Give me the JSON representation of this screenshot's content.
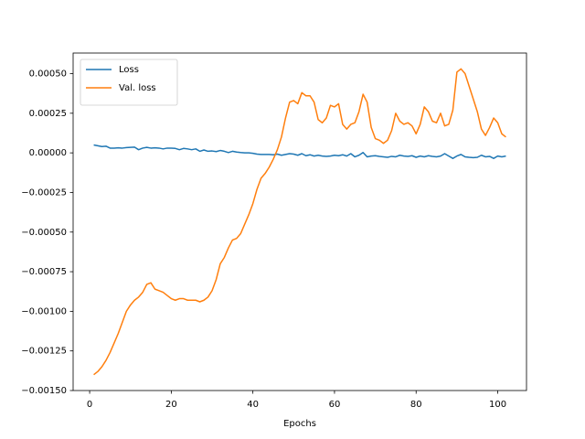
{
  "chart_data": {
    "type": "line",
    "x_label": "Epochs",
    "x": [
      1,
      2,
      3,
      4,
      5,
      6,
      7,
      8,
      9,
      10,
      11,
      12,
      13,
      14,
      15,
      16,
      17,
      18,
      19,
      20,
      21,
      22,
      23,
      24,
      25,
      26,
      27,
      28,
      29,
      30,
      31,
      32,
      33,
      34,
      35,
      36,
      37,
      38,
      39,
      40,
      41,
      42,
      43,
      44,
      45,
      46,
      47,
      48,
      49,
      50,
      51,
      52,
      53,
      54,
      55,
      56,
      57,
      58,
      59,
      60,
      61,
      62,
      63,
      64,
      65,
      66,
      67,
      68,
      69,
      70,
      71,
      72,
      73,
      74,
      75,
      76,
      77,
      78,
      79,
      80,
      81,
      82,
      83,
      84,
      85,
      86,
      87,
      88,
      89,
      90,
      91,
      92,
      93,
      94,
      95,
      96,
      97,
      98,
      99,
      100,
      101,
      102
    ],
    "series": [
      {
        "name": "Loss",
        "color": "#1f77b4",
        "values": [
          5e-05,
          4.5e-05,
          4e-05,
          4.2e-05,
          3e-05,
          3e-05,
          3.2e-05,
          3e-05,
          3.3e-05,
          3.5e-05,
          3.6e-05,
          2e-05,
          3e-05,
          3.5e-05,
          3e-05,
          3.2e-05,
          3e-05,
          2.5e-05,
          3e-05,
          3e-05,
          2.8e-05,
          2e-05,
          2.8e-05,
          2.5e-05,
          2e-05,
          2.5e-05,
          1e-05,
          1.8e-05,
          1e-05,
          1.2e-05,
          8e-06,
          1.5e-05,
          1e-05,
          2e-06,
          1e-05,
          5e-06,
          2e-06,
          0.0,
          0.0,
          -3e-06,
          -8e-06,
          -1e-05,
          -1e-05,
          -1e-05,
          -1.2e-05,
          -8e-06,
          -1.5e-05,
          -1e-05,
          -5e-06,
          -8e-06,
          -1.5e-05,
          -5e-06,
          -1.8e-05,
          -1.2e-05,
          -2e-05,
          -1.5e-05,
          -2e-05,
          -2.2e-05,
          -2e-05,
          -1.5e-05,
          -1.8e-05,
          -1.2e-05,
          -2e-05,
          -5e-06,
          -2.5e-05,
          -1.5e-05,
          2e-06,
          -2.5e-05,
          -2e-05,
          -1.8e-05,
          -2.2e-05,
          -2.5e-05,
          -2.8e-05,
          -2.2e-05,
          -2.5e-05,
          -1.5e-05,
          -2e-05,
          -2.2e-05,
          -1.8e-05,
          -2.8e-05,
          -2e-05,
          -2.5e-05,
          -1.8e-05,
          -2.2e-05,
          -2.5e-05,
          -2e-05,
          -5e-06,
          -2e-05,
          -3.5e-05,
          -2e-05,
          -1e-05,
          -2.5e-05,
          -2.8e-05,
          -3e-05,
          -2.8e-05,
          -1.5e-05,
          -2.5e-05,
          -2.2e-05,
          -3.5e-05,
          -2e-05,
          -2.5e-05,
          -2e-05
        ]
      },
      {
        "name": "Val. loss",
        "color": "#ff7f0e",
        "values": [
          -0.0014,
          -0.00138,
          -0.00135,
          -0.00131,
          -0.00126,
          -0.0012,
          -0.00114,
          -0.00107,
          -0.001,
          -0.00096,
          -0.00093,
          -0.00091,
          -0.00088,
          -0.00083,
          -0.00082,
          -0.00086,
          -0.00087,
          -0.00088,
          -0.0009,
          -0.00092,
          -0.00093,
          -0.00092,
          -0.00092,
          -0.00093,
          -0.00093,
          -0.00093,
          -0.00094,
          -0.00093,
          -0.00091,
          -0.00087,
          -0.0008,
          -0.0007,
          -0.00066,
          -0.0006,
          -0.00055,
          -0.00054,
          -0.00051,
          -0.00045,
          -0.00039,
          -0.00032,
          -0.00023,
          -0.00016,
          -0.00013,
          -9e-05,
          -4e-05,
          2e-05,
          0.0001,
          0.00022,
          0.00032,
          0.00033,
          0.00031,
          0.00038,
          0.00036,
          0.00036,
          0.00032,
          0.00021,
          0.00019,
          0.00022,
          0.0003,
          0.00029,
          0.00031,
          0.00018,
          0.00015,
          0.00018,
          0.00019,
          0.00026,
          0.00037,
          0.00032,
          0.00016,
          9e-05,
          8e-05,
          6e-05,
          8e-05,
          0.00014,
          0.00025,
          0.0002,
          0.00018,
          0.00019,
          0.00017,
          0.00012,
          0.00018,
          0.00029,
          0.00026,
          0.0002,
          0.00019,
          0.00025,
          0.00017,
          0.00018,
          0.00027,
          0.00051,
          0.00053,
          0.0005,
          0.00042,
          0.00034,
          0.00026,
          0.00015,
          0.00011,
          0.00016,
          0.00022,
          0.00019,
          0.00012,
          0.0001
        ]
      }
    ],
    "xlim": [
      -4.05,
      107.05
    ],
    "ylim": [
      -0.0015,
      0.00063
    ],
    "xticks": [
      0,
      20,
      40,
      60,
      80,
      100
    ],
    "yticks": [
      {
        "value": -0.0015,
        "label": "−0.00150"
      },
      {
        "value": -0.00125,
        "label": "−0.00125"
      },
      {
        "value": -0.001,
        "label": "−0.00100"
      },
      {
        "value": -0.00075,
        "label": "−0.00075"
      },
      {
        "value": -0.0005,
        "label": "−0.00050"
      },
      {
        "value": -0.00025,
        "label": "−0.00025"
      },
      {
        "value": 0,
        "label": "0.00000"
      },
      {
        "value": 0.00025,
        "label": "0.00025"
      },
      {
        "value": 0.0005,
        "label": "0.00050"
      }
    ],
    "legend": "upper left"
  }
}
